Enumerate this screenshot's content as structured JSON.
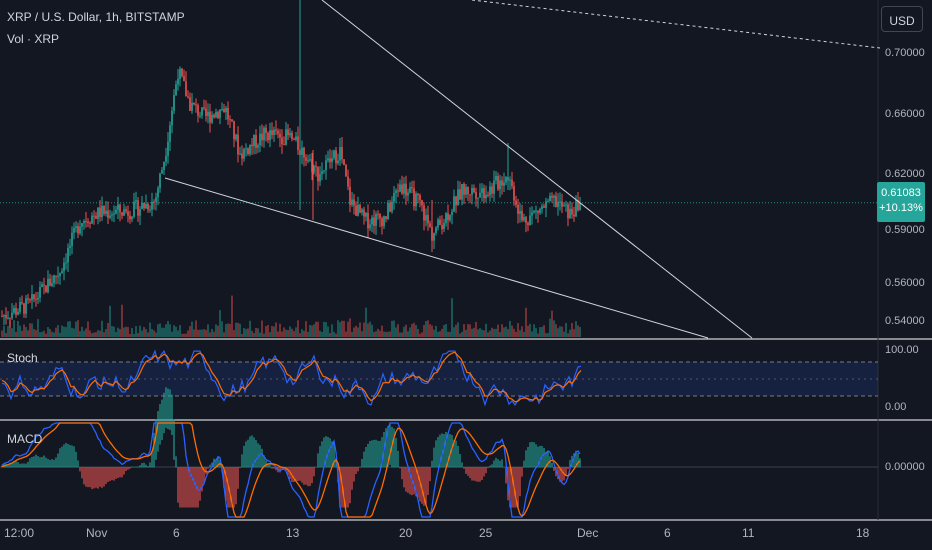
{
  "header": {
    "symbol_title": "XRP / U.S. Dollar, 1h, BITSTAMP",
    "volume_label": "Vol · XRP"
  },
  "currency_button": "USD",
  "price_axis": {
    "ticks": [
      "0.70000",
      "0.66000",
      "0.62000",
      "0.59000",
      "0.56000",
      "0.54000"
    ],
    "current_price": "0.61083",
    "change": "+10.13%"
  },
  "stoch_pane": {
    "title": "Stoch",
    "ticks": [
      "100.00",
      "0.00"
    ]
  },
  "macd_pane": {
    "title": "MACD",
    "ticks": [
      "0.00000"
    ]
  },
  "time_axis": {
    "ticks": [
      "12:00",
      "Nov",
      "6",
      "13",
      "20",
      "25",
      "Dec",
      "6",
      "11",
      "18"
    ]
  },
  "colors": {
    "background": "#131722",
    "up": "#26a69a",
    "down": "#ef5350",
    "stoch_k": "#2962ff",
    "stoch_d": "#ff6d00",
    "trendline": "#d1d4dc"
  },
  "chart_data": {
    "type": "candlestick",
    "symbol": "XRP / U.S. Dollar",
    "interval": "1h",
    "exchange": "BITSTAMP",
    "current_price": 0.61083,
    "change_percent": 10.13,
    "price_range": [
      0.53,
      0.72
    ],
    "close_path": [
      [
        "12:00",
        0.543
      ],
      [
        "Nov",
        0.585
      ],
      [
        "Nov 3",
        0.605
      ],
      [
        "Nov 5",
        0.613
      ],
      [
        "Nov 6",
        0.68
      ],
      [
        "Nov 7",
        0.672
      ],
      [
        "Nov 9",
        0.658
      ],
      [
        "Nov 11",
        0.648
      ],
      [
        "Nov 13",
        0.66
      ],
      [
        "Nov 14",
        0.63
      ],
      [
        "Nov 15",
        0.642
      ],
      [
        "Nov 17",
        0.605
      ],
      [
        "Nov 19",
        0.615
      ],
      [
        "Nov 20",
        0.618
      ],
      [
        "Nov 22",
        0.59
      ],
      [
        "Nov 23",
        0.614
      ],
      [
        "Nov 25",
        0.618
      ],
      [
        "Nov 26",
        0.63
      ],
      [
        "Nov 27",
        0.604
      ],
      [
        "Nov 28",
        0.61
      ],
      [
        "Nov 30",
        0.611
      ]
    ],
    "stoch_range": [
      0,
      100
    ],
    "macd_zero": 0.0
  }
}
